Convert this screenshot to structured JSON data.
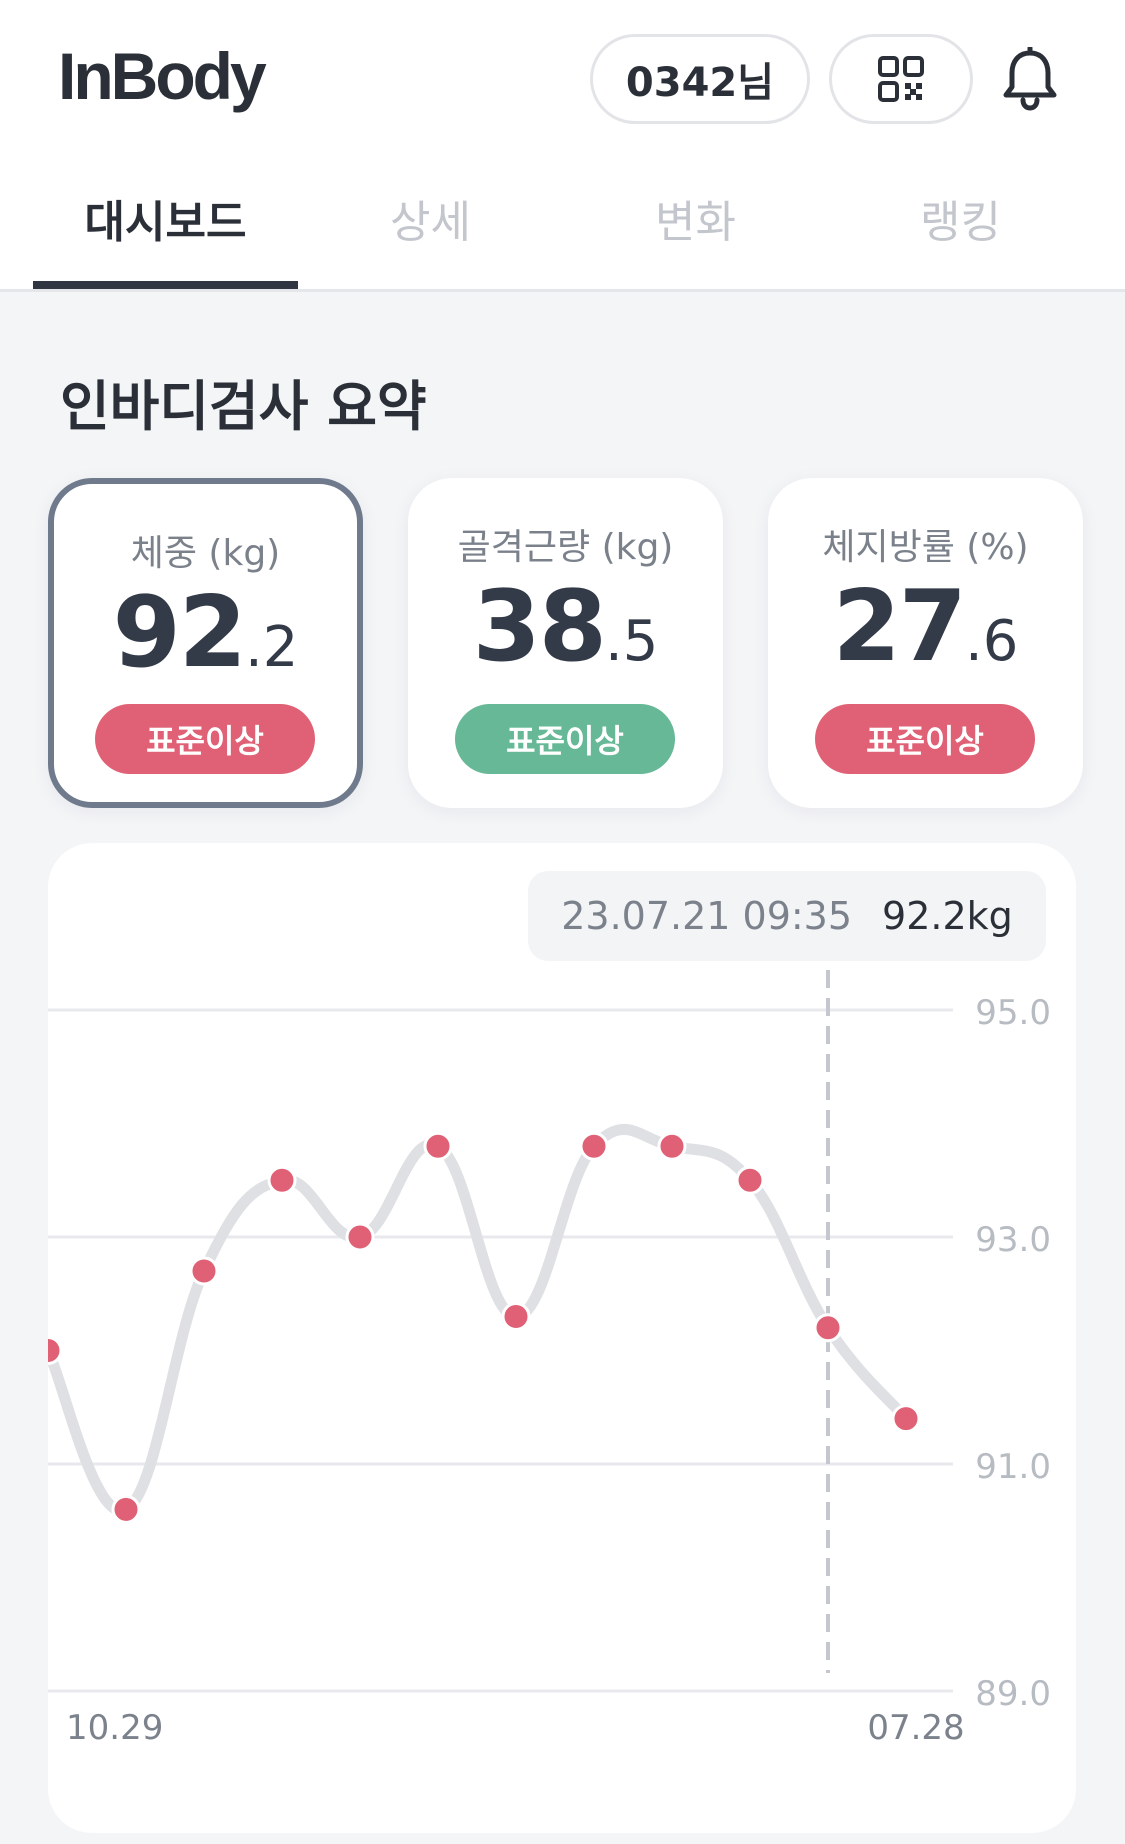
{
  "header": {
    "logo": "InBody",
    "user_label": "0342님",
    "qr_icon": "qr-code-icon",
    "bell_icon": "bell-icon"
  },
  "tabs": [
    {
      "label": "대시보드",
      "active": true
    },
    {
      "label": "상세",
      "active": false
    },
    {
      "label": "변화",
      "active": false
    },
    {
      "label": "랭킹",
      "active": false
    }
  ],
  "section_title": "인바디검사 요약",
  "cards": [
    {
      "label": "체중 (kg)",
      "int": "92",
      "dec": ".2",
      "status": "표준이상",
      "status_color": "#e06175",
      "selected": true
    },
    {
      "label": "골격근량 (kg)",
      "int": "38",
      "dec": ".5",
      "status": "표준이상",
      "status_color": "#66b896",
      "selected": false
    },
    {
      "label": "체지방률 (%)",
      "int": "27",
      "dec": ".6",
      "status": "표준이상",
      "status_color": "#e06175",
      "selected": false
    }
  ],
  "tooltip": {
    "date": "23.07.21 09:35",
    "value": "92.2kg"
  },
  "colors": {
    "point": "#e06175",
    "line": "#dfe0e4",
    "selected_border": "#6f7a8c"
  },
  "chart_data": {
    "type": "line",
    "title": "",
    "xlabel": "",
    "ylabel": "",
    "ylim": [
      89.0,
      95.0
    ],
    "yticks": [
      "95.0",
      "93.0",
      "91.0",
      "89.0"
    ],
    "x_tick_labels": [
      "10.29",
      "07.28"
    ],
    "grid": true,
    "series": [
      {
        "values": [
          92.0,
          90.6,
          92.7,
          93.5,
          93.0,
          93.8,
          92.3,
          93.8,
          93.8,
          93.5,
          92.2,
          91.4
        ]
      }
    ],
    "highlight_index": 10
  }
}
